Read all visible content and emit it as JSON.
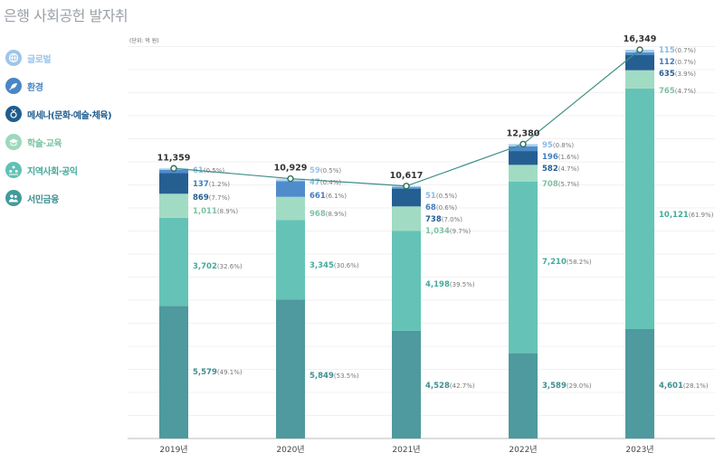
{
  "title": "은행 사회공헌 발자취",
  "legend": [
    {
      "label": "글로벌",
      "color": "#9fc5ea",
      "icon": "globe-icon"
    },
    {
      "label": "환경",
      "color": "#4a86c5",
      "icon": "leaf-hand-icon"
    },
    {
      "label": "메세나(문화·예술·체육)",
      "color": "#1f5d8f",
      "icon": "medal-icon"
    },
    {
      "label": "학술·교육",
      "color": "#9ed8bd",
      "icon": "graduation-icon"
    },
    {
      "label": "지역사회·공익",
      "color": "#5fc1b4",
      "icon": "community-icon"
    },
    {
      "label": "서민금융",
      "color": "#449a9a",
      "icon": "people-icon"
    }
  ],
  "chart_data": {
    "type": "bar",
    "stacked": true,
    "unit_label": "(단위: 억 원)",
    "categories": [
      "2019년",
      "2020년",
      "2021년",
      "2022년",
      "2023년"
    ],
    "totals": [
      11359,
      10929,
      10617,
      12380,
      16349
    ],
    "total_labels": [
      "11,359",
      "10,929",
      "10,617",
      "12,380",
      "16,349"
    ],
    "series": [
      {
        "name": "서민금융",
        "color": "#4e9a9e",
        "label_color": "#3f8f93",
        "values": [
          5579,
          5849,
          4528,
          3589,
          4601
        ],
        "value_labels": [
          "5,579",
          "5,849",
          "4,528",
          "3,589",
          "4,601"
        ],
        "pct_labels": [
          "(49.1%)",
          "(53.5%)",
          "(42.7%)",
          "(29.0%)",
          "(28.1%)"
        ]
      },
      {
        "name": "지역사회·공익",
        "color": "#64c3b6",
        "label_color": "#44aa9c",
        "values": [
          3702,
          3345,
          4198,
          7210,
          10121
        ],
        "value_labels": [
          "3,702",
          "3,345",
          "4,198",
          "7,210",
          "10,121"
        ],
        "pct_labels": [
          "(32.6%)",
          "(30.6%)",
          "(39.5%)",
          "(58.2%)",
          "(61.9%)"
        ]
      },
      {
        "name": "학술·교육",
        "color": "#a2dbc4",
        "label_color": "#7ec2a4",
        "values": [
          1011,
          968,
          1034,
          708,
          765
        ],
        "value_labels": [
          "1,011",
          "968",
          "1,034",
          "708",
          "765"
        ],
        "pct_labels": [
          "(8.9%)",
          "(8.9%)",
          "(9.7%)",
          "(5.7%)",
          "(4.7%)"
        ]
      },
      {
        "name": "메세나(문화·예술·체육)",
        "color": "#255f92",
        "label_color": "#255f92",
        "values": [
          869,
          0,
          738,
          582,
          635
        ],
        "value_labels": [
          "869",
          "",
          "738",
          "582",
          "635"
        ],
        "pct_labels": [
          "(7.7%)",
          "",
          "(7.0%)",
          "(4.7%)",
          "(3.9%)"
        ]
      },
      {
        "name": "환경",
        "color": "#4f8ccb",
        "label_color": "#3f7fc0",
        "values": [
          137,
          661,
          68,
          196,
          112
        ],
        "value_labels": [
          "137",
          "661",
          "68",
          "196",
          "112"
        ],
        "pct_labels": [
          "(1.2%)",
          "(6.1%)",
          "(0.6%)",
          "(1.6%)",
          "(0.7%)"
        ]
      },
      {
        "name": "글로벌",
        "color": "#a6cdee",
        "label_color": "#8bbbe6",
        "values": [
          61,
          47,
          51,
          95,
          115
        ],
        "value_labels": [
          "61",
          "47",
          "51",
          "95",
          "115"
        ],
        "pct_labels": [
          "(0.5%)",
          "(0.4%)",
          "(0.5%)",
          "(0.8%)",
          "(0.7%)"
        ]
      },
      {
        "name": "",
        "color": "#c3ddf3",
        "label_color": "#9cc4e8",
        "values": [
          0,
          59,
          0,
          0,
          0
        ],
        "value_labels": [
          "",
          "59",
          "",
          "",
          ""
        ],
        "pct_labels": [
          "",
          "(0.5%)",
          "",
          "",
          ""
        ]
      }
    ],
    "line_color": "#3f8f84",
    "grid": true
  }
}
